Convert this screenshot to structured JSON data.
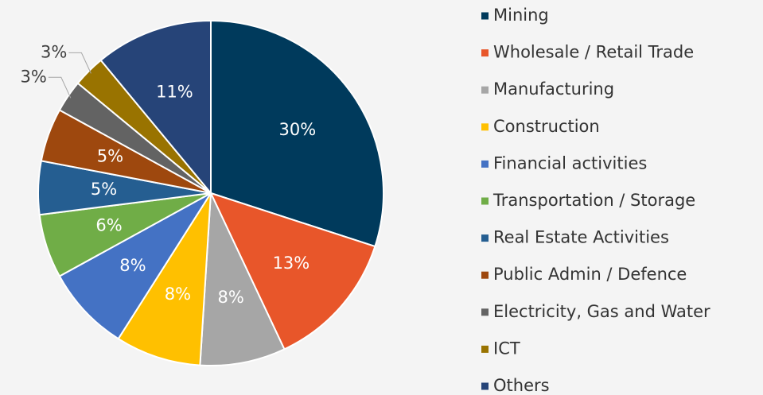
{
  "chart_data": {
    "type": "pie",
    "categories": [
      "Mining",
      "Wholesale / Retail Trade",
      "Manufacturing",
      "Construction",
      "Financial activities",
      "Transportation / Storage",
      "Real Estate Activities",
      "Public Admin / Defence",
      "Electricity, Gas and Water",
      "ICT",
      "Others"
    ],
    "values": [
      30,
      13,
      8,
      8,
      8,
      6,
      5,
      5,
      3,
      3,
      11
    ],
    "value_labels": [
      "30%",
      "13%",
      "8%",
      "8%",
      "8%",
      "6%",
      "5%",
      "5%",
      "3%",
      "3%",
      "11%"
    ],
    "colors": [
      "#003a5c",
      "#e8562a",
      "#a6a6a6",
      "#ffc000",
      "#4472c4",
      "#70ad47",
      "#255e91",
      "#9e480e",
      "#636363",
      "#997300",
      "#264478"
    ],
    "legend": "right"
  }
}
